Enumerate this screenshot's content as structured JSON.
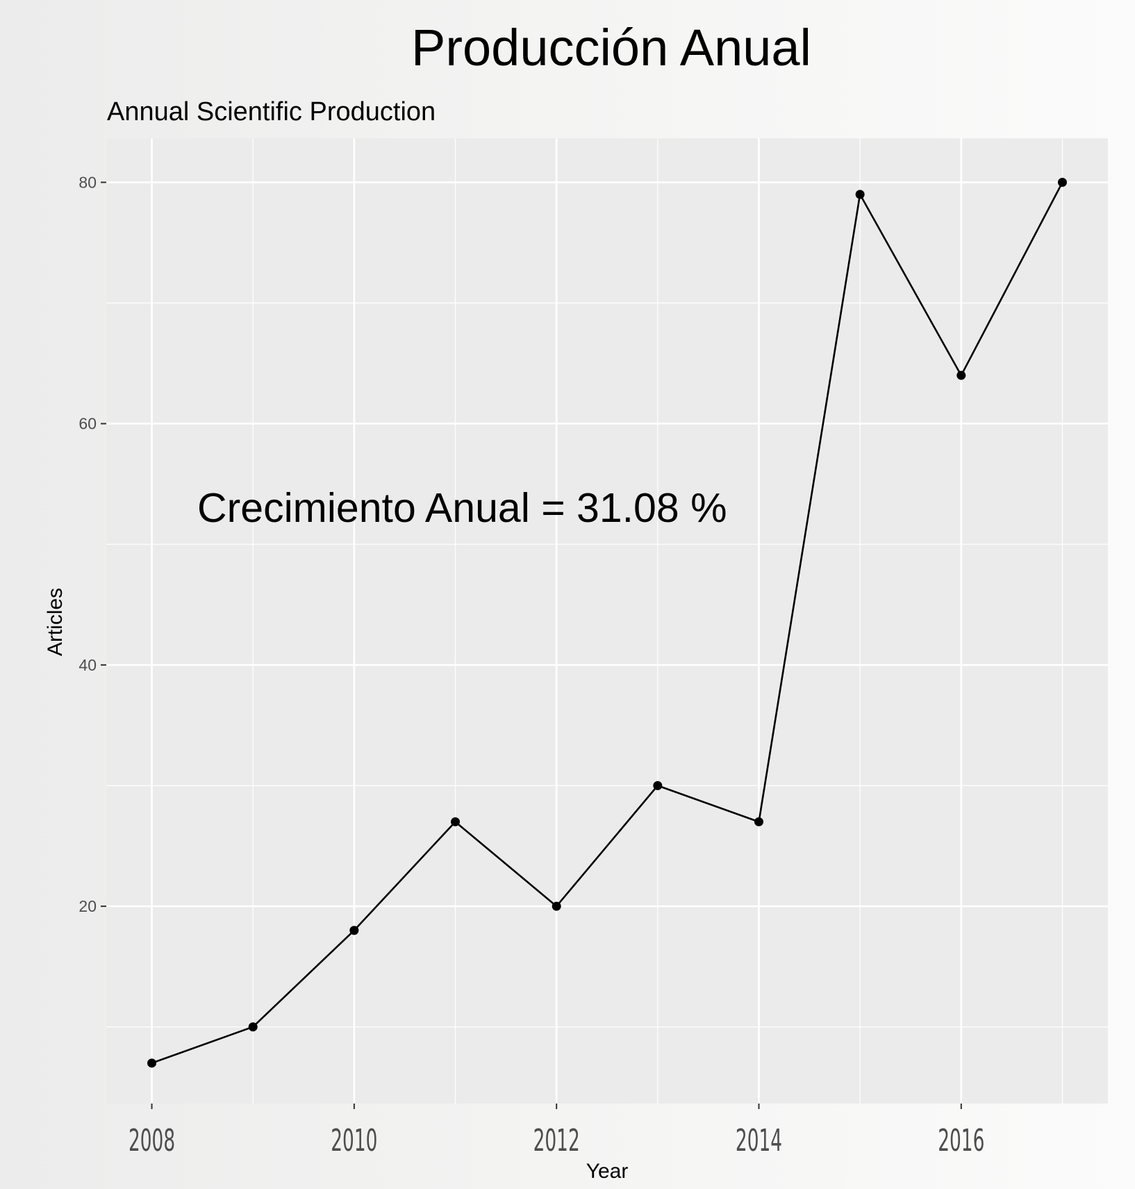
{
  "chart_data": {
    "type": "line",
    "title": "Producción Anual",
    "subtitle": "Annual Scientific Production",
    "xlabel": "Year",
    "ylabel": "Articles",
    "annotation": "Crecimiento Anual = 31.08 %",
    "x": [
      2008,
      2009,
      2010,
      2011,
      2012,
      2013,
      2014,
      2015,
      2016,
      2017
    ],
    "series": [
      {
        "values": [
          7,
          10,
          18,
          27,
          20,
          30,
          27,
          79,
          64,
          80
        ]
      }
    ],
    "x_ticks": [
      "2008",
      "2010",
      "2012",
      "2014",
      "2016"
    ],
    "y_ticks": [
      "20",
      "40",
      "60",
      "80"
    ],
    "xlim": [
      2007.55,
      2017.45
    ],
    "ylim": [
      3.65,
      83.65
    ],
    "grid": true,
    "colors": {
      "panel": "#ebebeb",
      "grid": "#ffffff",
      "line": "#000000",
      "axis_text": "#4d4d4d"
    }
  }
}
